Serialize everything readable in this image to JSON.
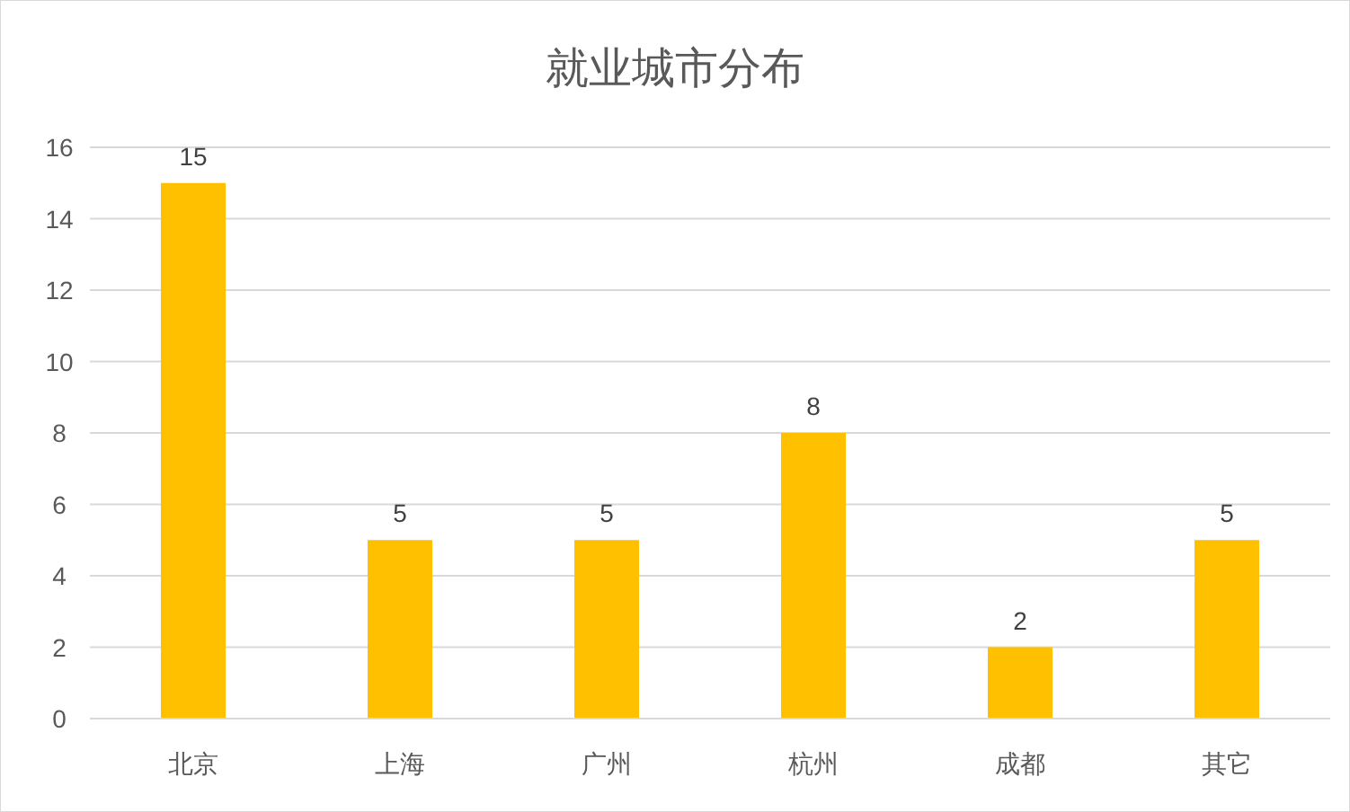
{
  "chart_data": {
    "type": "bar",
    "title": "就业城市分布",
    "categories": [
      "北京",
      "上海",
      "广州",
      "杭州",
      "成都",
      "其它"
    ],
    "values": [
      15,
      5,
      5,
      8,
      2,
      5
    ],
    "color": "#ffc000",
    "ylim": [
      0,
      16
    ],
    "yticks": [
      0,
      2,
      4,
      6,
      8,
      10,
      12,
      14,
      16
    ],
    "grid": "y",
    "data_labels": true
  }
}
